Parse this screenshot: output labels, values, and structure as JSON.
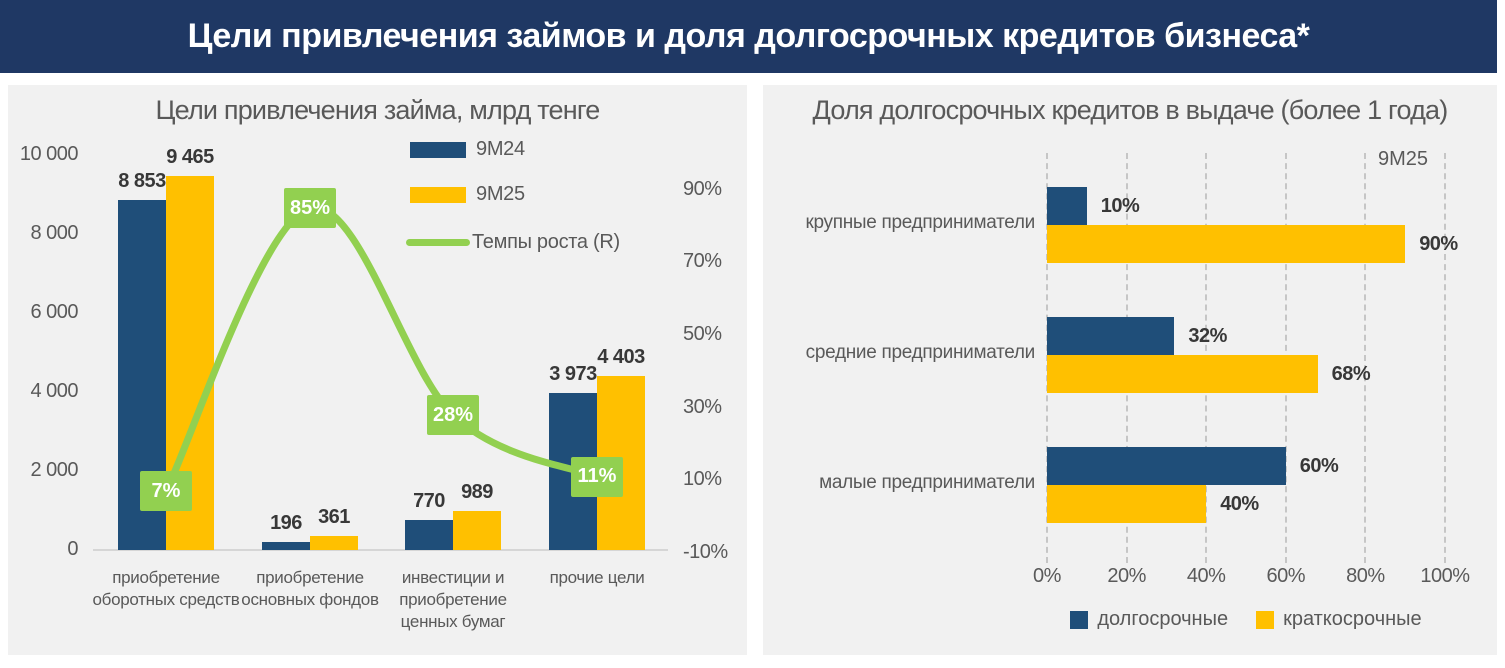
{
  "header": {
    "title": "Цели привлечения займов и доля долгосрочных кредитов бизнеса*"
  },
  "colors": {
    "header_navy": "#1F3864",
    "bar_blue": "#1F4E79",
    "bar_yellow": "#FFC000",
    "line_green": "#92D050",
    "panel_bg": "#F1F1F1",
    "axis_text": "#595959",
    "value_text": "#383838"
  },
  "chart_data": [
    {
      "type": "bar",
      "title": "Цели привлечения займа, млрд тенге",
      "categories": [
        "приобретение оборотных средств",
        "приобретение основных фондов",
        "инвестиции и приобретение ценных бумаг",
        "прочие цели"
      ],
      "series": [
        {
          "name": "9M24",
          "color": "#1F4E79",
          "values": [
            8853,
            196,
            770,
            3973
          ],
          "labels": [
            "8 853",
            "196",
            "770",
            "3 973"
          ]
        },
        {
          "name": "9M25",
          "color": "#FFC000",
          "values": [
            9465,
            361,
            989,
            4403
          ],
          "labels": [
            "9 465",
            "361",
            "989",
            "4 403"
          ]
        }
      ],
      "line_series": {
        "name": "Темпы роста (R)",
        "color": "#92D050",
        "values": [
          7,
          85,
          28,
          11
        ],
        "labels": [
          "7%",
          "85%",
          "28%",
          "11%"
        ]
      },
      "y_left_axis": {
        "ticks": [
          "10 000",
          "8 000",
          "6 000",
          "4 000",
          "2 000",
          "0"
        ],
        "min": 0,
        "max": 10000
      },
      "y_right_axis": {
        "ticks": [
          "90%",
          "70%",
          "50%",
          "30%",
          "10%",
          "-10%"
        ],
        "min": -10,
        "max": 90
      },
      "legend_position": "top-right-inside",
      "grid": false
    },
    {
      "type": "bar",
      "orientation": "horizontal",
      "title": "Доля долгосрочных кредитов в выдаче (более 1 года)",
      "period_label": "9M25",
      "categories": [
        "крупные предприниматели",
        "средние предприниматели",
        "малые предприниматели"
      ],
      "series": [
        {
          "name": "долгосрочные",
          "color": "#1F4E79",
          "values": [
            10,
            32,
            60
          ],
          "labels": [
            "10%",
            "32%",
            "60%"
          ]
        },
        {
          "name": "краткосрочные",
          "color": "#FFC000",
          "values": [
            90,
            68,
            40
          ],
          "labels": [
            "90%",
            "68%",
            "40%"
          ]
        }
      ],
      "x_axis": {
        "ticks": [
          "0%",
          "20%",
          "40%",
          "60%",
          "80%",
          "100%"
        ],
        "min": 0,
        "max": 100
      },
      "legend_position": "bottom-center",
      "grid": "vertical-dashed"
    }
  ]
}
